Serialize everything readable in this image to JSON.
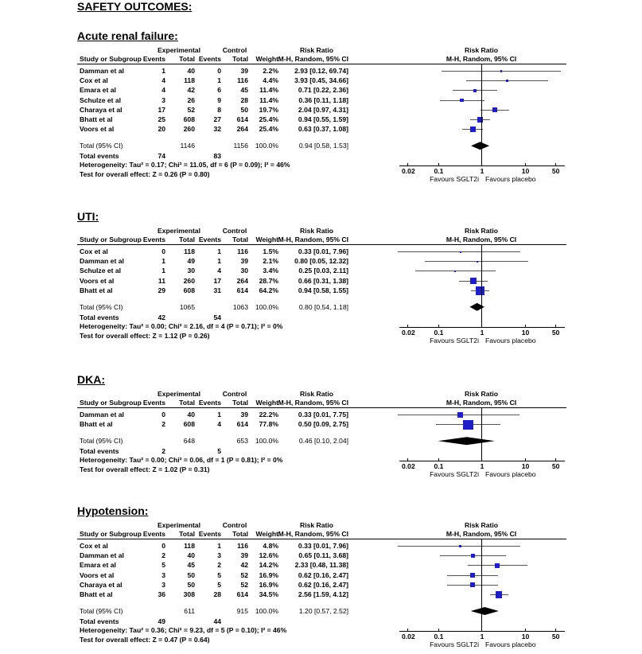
{
  "page_title": "SAFETY OUTCOMES:",
  "common": {
    "experimental": "Experimental",
    "control": "Control",
    "risk_ratio": "Risk Ratio",
    "study": "Study or Subgroup",
    "events": "Events",
    "total": "Total",
    "weight": "Weight",
    "method": "M-H, Random, 95% CI",
    "axis_ticks": [
      "0.02",
      "0.1",
      "1",
      "10",
      "50"
    ],
    "favours_left": "Favours SGLT2i",
    "favours_right": "Favours placebo",
    "marker_color": "#1f1fc8"
  },
  "sections": [
    {
      "title": "Acute renal failure:",
      "rows": [
        {
          "study": "Damman et al",
          "exp_events": "1",
          "exp_total": "40",
          "ctl_events": "0",
          "ctl_total": "39",
          "weight": "2.2%",
          "rr_text": "2.93 [0.12, 69.74]",
          "rr": 2.93,
          "lo": 0.12,
          "hi": 69.74,
          "w": 2.2
        },
        {
          "study": "Cox et al",
          "exp_events": "4",
          "exp_total": "118",
          "ctl_events": "1",
          "ctl_total": "116",
          "weight": "4.4%",
          "rr_text": "3.93 [0.45, 34.66]",
          "rr": 3.93,
          "lo": 0.45,
          "hi": 34.66,
          "w": 4.4
        },
        {
          "study": "Emara et al",
          "exp_events": "4",
          "exp_total": "42",
          "ctl_events": "6",
          "ctl_total": "45",
          "weight": "11.4%",
          "rr_text": "0.71 [0.22, 2.36]",
          "rr": 0.71,
          "lo": 0.22,
          "hi": 2.36,
          "w": 11.4
        },
        {
          "study": "Schulze et al",
          "exp_events": "3",
          "exp_total": "26",
          "ctl_events": "9",
          "ctl_total": "28",
          "weight": "11.4%",
          "rr_text": "0.36 [0.11, 1.18]",
          "rr": 0.36,
          "lo": 0.11,
          "hi": 1.18,
          "w": 11.4
        },
        {
          "study": "Charaya et al",
          "exp_events": "17",
          "exp_total": "52",
          "ctl_events": "8",
          "ctl_total": "50",
          "weight": "19.7%",
          "rr_text": "2.04 [0.97, 4.31]",
          "rr": 2.04,
          "lo": 0.97,
          "hi": 4.31,
          "w": 19.7
        },
        {
          "study": "Bhatt et al",
          "exp_events": "25",
          "exp_total": "608",
          "ctl_events": "27",
          "ctl_total": "614",
          "weight": "25.4%",
          "rr_text": "0.94 [0.55, 1.59]",
          "rr": 0.94,
          "lo": 0.55,
          "hi": 1.59,
          "w": 25.4
        },
        {
          "study": "Voors et al",
          "exp_events": "20",
          "exp_total": "260",
          "ctl_events": "32",
          "ctl_total": "264",
          "weight": "25.4%",
          "rr_text": "0.63 [0.37, 1.08]",
          "rr": 0.63,
          "lo": 0.37,
          "hi": 1.08,
          "w": 25.4
        }
      ],
      "total": {
        "label": "Total (95% CI)",
        "exp_total": "1146",
        "ctl_total": "1156",
        "weight": "100.0%",
        "rr_text": "0.94 [0.58, 1.53]",
        "rr": 0.94,
        "lo": 0.58,
        "hi": 1.53
      },
      "total_events": {
        "label": "Total events",
        "exp": "74",
        "ctl": "83"
      },
      "heterogeneity": "Heterogeneity: Tau² = 0.17; Chi² = 11.05, df = 6 (P = 0.09); I² = 46%",
      "overall_effect": "Test for overall effect: Z = 0.26 (P = 0.80)"
    },
    {
      "title": "UTI:",
      "rows": [
        {
          "study": "Cox et al",
          "exp_events": "0",
          "exp_total": "118",
          "ctl_events": "1",
          "ctl_total": "116",
          "weight": "1.5%",
          "rr_text": "0.33 [0.01, 7.96]",
          "rr": 0.33,
          "lo": 0.01,
          "hi": 7.96,
          "w": 1.5
        },
        {
          "study": "Damman et al",
          "exp_events": "1",
          "exp_total": "49",
          "ctl_events": "1",
          "ctl_total": "39",
          "weight": "2.1%",
          "rr_text": "0.80 [0.05, 12.32]",
          "rr": 0.8,
          "lo": 0.05,
          "hi": 12.32,
          "w": 2.1
        },
        {
          "study": "Schulze et al",
          "exp_events": "1",
          "exp_total": "30",
          "ctl_events": "4",
          "ctl_total": "30",
          "weight": "3.4%",
          "rr_text": "0.25 [0.03, 2.11]",
          "rr": 0.25,
          "lo": 0.03,
          "hi": 2.11,
          "w": 3.4
        },
        {
          "study": "Voors et al",
          "exp_events": "11",
          "exp_total": "260",
          "ctl_events": "17",
          "ctl_total": "264",
          "weight": "28.7%",
          "rr_text": "0.66 [0.31, 1.38]",
          "rr": 0.66,
          "lo": 0.31,
          "hi": 1.38,
          "w": 28.7
        },
        {
          "study": "Bhatt et al",
          "exp_events": "29",
          "exp_total": "608",
          "ctl_events": "31",
          "ctl_total": "614",
          "weight": "64.2%",
          "rr_text": "0.94 [0.58, 1.55]",
          "rr": 0.94,
          "lo": 0.58,
          "hi": 1.55,
          "w": 64.2
        }
      ],
      "total": {
        "label": "Total (95% CI)",
        "exp_total": "1065",
        "ctl_total": "1063",
        "weight": "100.0%",
        "rr_text": "0.80 [0.54, 1.18]",
        "rr": 0.8,
        "lo": 0.54,
        "hi": 1.18
      },
      "total_events": {
        "label": "Total events",
        "exp": "42",
        "ctl": "54"
      },
      "heterogeneity": "Heterogeneity: Tau² = 0.00; Chi² = 2.16, df = 4 (P = 0.71); I² = 0%",
      "overall_effect": "Test for overall effect: Z = 1.12 (P = 0.26)"
    },
    {
      "title": "DKA:",
      "rows": [
        {
          "study": "Damman et al",
          "exp_events": "0",
          "exp_total": "40",
          "ctl_events": "1",
          "ctl_total": "39",
          "weight": "22.2%",
          "rr_text": "0.33 [0.01, 7.75]",
          "rr": 0.33,
          "lo": 0.01,
          "hi": 7.75,
          "w": 22.2
        },
        {
          "study": "Bhatt et al",
          "exp_events": "2",
          "exp_total": "608",
          "ctl_events": "4",
          "ctl_total": "614",
          "weight": "77.8%",
          "rr_text": "0.50 [0.09, 2.75]",
          "rr": 0.5,
          "lo": 0.09,
          "hi": 2.75,
          "w": 77.8
        }
      ],
      "total": {
        "label": "Total (95% CI)",
        "exp_total": "648",
        "ctl_total": "653",
        "weight": "100.0%",
        "rr_text": "0.46 [0.10, 2.04]",
        "rr": 0.46,
        "lo": 0.1,
        "hi": 2.04
      },
      "total_events": {
        "label": "Total events",
        "exp": "2",
        "ctl": "5"
      },
      "heterogeneity": "Heterogeneity: Tau² = 0.00; Chi² = 0.06, df = 1 (P = 0.81); I² = 0%",
      "overall_effect": "Test for overall effect: Z = 1.02 (P = 0.31)"
    },
    {
      "title": "Hypotension:",
      "rows": [
        {
          "study": "Cox et al",
          "exp_events": "0",
          "exp_total": "118",
          "ctl_events": "1",
          "ctl_total": "116",
          "weight": "4.8%",
          "rr_text": "0.33 [0.01, 7.96]",
          "rr": 0.33,
          "lo": 0.01,
          "hi": 7.96,
          "w": 4.8
        },
        {
          "study": "Damman et al",
          "exp_events": "2",
          "exp_total": "40",
          "ctl_events": "3",
          "ctl_total": "39",
          "weight": "12.6%",
          "rr_text": "0.65 [0.11, 3.68]",
          "rr": 0.65,
          "lo": 0.11,
          "hi": 3.68,
          "w": 12.6
        },
        {
          "study": "Emara et al",
          "exp_events": "5",
          "exp_total": "45",
          "ctl_events": "2",
          "ctl_total": "42",
          "weight": "14.2%",
          "rr_text": "2.33 [0.48, 11.38]",
          "rr": 2.33,
          "lo": 0.48,
          "hi": 11.38,
          "w": 14.2
        },
        {
          "study": "Voors et al",
          "exp_events": "3",
          "exp_total": "50",
          "ctl_events": "5",
          "ctl_total": "52",
          "weight": "16.9%",
          "rr_text": "0.62 [0.16, 2.47]",
          "rr": 0.62,
          "lo": 0.16,
          "hi": 2.47,
          "w": 16.9
        },
        {
          "study": "Charaya et al",
          "exp_events": "3",
          "exp_total": "50",
          "ctl_events": "5",
          "ctl_total": "52",
          "weight": "16.9%",
          "rr_text": "0.62 [0.16, 2.47]",
          "rr": 0.62,
          "lo": 0.16,
          "hi": 2.47,
          "w": 16.9
        },
        {
          "study": "Bhatt et al",
          "exp_events": "36",
          "exp_total": "308",
          "ctl_events": "28",
          "ctl_total": "614",
          "weight": "34.5%",
          "rr_text": "2.56 [1.59, 4.12]",
          "rr": 2.56,
          "lo": 1.59,
          "hi": 4.12,
          "w": 34.5
        }
      ],
      "total": {
        "label": "Total (95% CI)",
        "exp_total": "611",
        "ctl_total": "915",
        "weight": "100.0%",
        "rr_text": "1.20 [0.57, 2.52]",
        "rr": 1.2,
        "lo": 0.57,
        "hi": 2.52
      },
      "total_events": {
        "label": "Total events",
        "exp": "49",
        "ctl": "44"
      },
      "heterogeneity": "Heterogeneity: Tau² = 0.36; Chi² = 9.23, df = 5 (P = 0.10); I² = 46%",
      "overall_effect": "Test for overall effect: Z = 0.47 (P = 0.64)"
    }
  ]
}
